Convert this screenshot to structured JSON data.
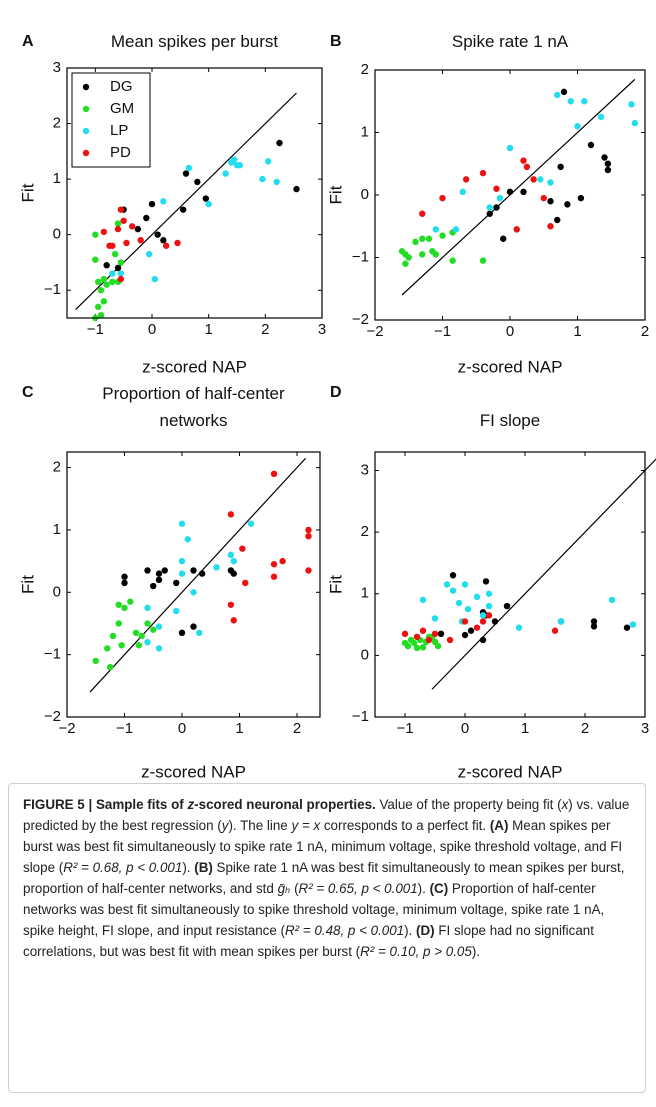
{
  "chart_data": [
    {
      "type": "scatter",
      "label": "A",
      "title": "Mean  spikes per burst",
      "xlabel": "z-scored NAP",
      "ylabel": "Fit",
      "legend": "upper left",
      "xlim": [
        -1.5,
        3
      ],
      "ylim": [
        -1.5,
        3
      ],
      "xticks": [
        {
          "value": -1,
          "label": "−1"
        },
        0,
        1,
        2,
        3
      ],
      "yticks": [
        {
          "value": -1,
          "label": "−1"
        },
        0,
        1,
        2,
        3
      ],
      "reference_line": [
        -1.35,
        2.55
      ],
      "series": [
        {
          "name": "DG",
          "color": "#000000",
          "x": [
            -0.8,
            -0.6,
            -0.5,
            -0.1,
            0,
            0.1,
            0.2,
            0.55,
            0.6,
            0.8,
            0.95,
            2.25,
            2.55,
            -0.25
          ],
          "values": [
            -0.55,
            -0.6,
            0.45,
            0.3,
            0.55,
            0,
            -0.1,
            0.45,
            1.1,
            0.95,
            0.65,
            1.65,
            0.82,
            0.1
          ]
        },
        {
          "name": "GM",
          "color": "#22dd22",
          "x": [
            -1,
            -0.95,
            -0.9,
            -0.85,
            -0.9,
            -0.85,
            -0.7,
            -0.65,
            -1,
            -1,
            -0.55,
            -0.6,
            -0.8,
            -0.95,
            -0.6
          ],
          "values": [
            -1.5,
            -1.3,
            -1.45,
            -1.2,
            -1,
            -0.8,
            -0.85,
            -0.35,
            -0.45,
            0,
            -0.5,
            0.2,
            -0.9,
            -0.85,
            -0.85
          ]
        },
        {
          "name": "LP",
          "color": "#22ddee",
          "x": [
            -0.7,
            -0.55,
            0.05,
            -0.05,
            0.2,
            0.65,
            1,
            1.3,
            1.45,
            1.5,
            1.55,
            1.95,
            2.05,
            2.2,
            1.4
          ],
          "values": [
            -0.7,
            -0.7,
            -0.8,
            -0.35,
            0.6,
            1.2,
            0.55,
            1.1,
            1.35,
            1.25,
            1.25,
            1,
            1.32,
            0.95,
            1.3
          ]
        },
        {
          "name": "PD",
          "color": "#ee1111",
          "x": [
            -0.85,
            -0.75,
            -0.6,
            -0.55,
            -0.5,
            -0.45,
            -0.35,
            -0.2,
            0.25,
            0.45,
            -0.55,
            -0.7
          ],
          "values": [
            0.05,
            -0.2,
            0.1,
            0.45,
            0.25,
            -0.15,
            0.15,
            -0.1,
            -0.2,
            -0.15,
            -0.8,
            -0.2
          ]
        }
      ]
    },
    {
      "type": "scatter",
      "label": "B",
      "title": "Spike rate 1 nA",
      "xlabel": "z-scored NAP",
      "ylabel": "Fit",
      "xlim": [
        -2,
        2
      ],
      "ylim": [
        -2,
        2
      ],
      "xticks": [
        {
          "value": -2,
          "label": "−2"
        },
        {
          "value": -1,
          "label": "−1"
        },
        0,
        1,
        2
      ],
      "yticks": [
        {
          "value": -2,
          "label": "−2"
        },
        {
          "value": -1,
          "label": "−1"
        },
        0,
        1,
        2
      ],
      "reference_line": [
        -1.6,
        1.85
      ],
      "series": [
        {
          "color": "#000000",
          "x": [
            -0.1,
            -0.3,
            -0.2,
            0,
            0.2,
            0.6,
            0.7,
            0.75,
            0.85,
            1.05,
            1.2,
            1.4,
            1.45,
            1.45,
            0.8
          ],
          "values": [
            -0.7,
            -0.3,
            -0.2,
            0.05,
            0.05,
            -0.1,
            -0.4,
            0.45,
            -0.15,
            -0.05,
            0.8,
            0.6,
            0.5,
            0.4,
            1.65
          ]
        },
        {
          "color": "#22dd22",
          "x": [
            -1.6,
            -1.55,
            -1.5,
            -1.4,
            -1.3,
            -1.3,
            -1.2,
            -1.15,
            -1.1,
            -1,
            -0.85,
            -0.85,
            -0.4,
            -1.55
          ],
          "values": [
            -0.9,
            -0.95,
            -1,
            -0.75,
            -0.7,
            -0.95,
            -0.7,
            -0.9,
            -0.95,
            -0.65,
            -1.05,
            -0.6,
            -1.05,
            -1.1
          ]
        },
        {
          "color": "#22ddee",
          "x": [
            -1.1,
            -0.8,
            -0.7,
            -0.3,
            -0.15,
            0,
            0.1,
            0.45,
            0.7,
            0.9,
            1,
            1.1,
            1.35,
            1.8,
            1.85,
            0.6
          ],
          "values": [
            -0.55,
            -0.55,
            0.05,
            -0.2,
            -0.05,
            0.75,
            -0.55,
            0.25,
            1.6,
            1.5,
            1.1,
            1.5,
            1.25,
            1.45,
            1.15,
            0.2
          ]
        },
        {
          "color": "#ee1111",
          "x": [
            -1.3,
            -1,
            -0.65,
            -0.4,
            -0.2,
            0.2,
            0.25,
            0.35,
            0.1,
            0.5,
            0.6
          ],
          "values": [
            -0.3,
            -0.05,
            0.25,
            0.35,
            0.1,
            0.55,
            0.45,
            0.25,
            -0.55,
            -0.05,
            -0.5
          ]
        }
      ]
    },
    {
      "type": "scatter",
      "label": "C",
      "title": "Proportion of half-center networks",
      "xlabel": "z-scored NAP",
      "ylabel": "Fit",
      "xlim": [
        -2,
        2.4
      ],
      "ylim": [
        -2,
        2.25
      ],
      "xticks": [
        {
          "value": -2,
          "label": "−2"
        },
        {
          "value": -1,
          "label": "−1"
        },
        0,
        1,
        2
      ],
      "yticks": [
        {
          "value": -2,
          "label": "−2"
        },
        {
          "value": -1,
          "label": "−1"
        },
        0,
        1,
        2
      ],
      "reference_line": [
        -1.6,
        2.15
      ],
      "series": [
        {
          "color": "#000000",
          "x": [
            -1,
            -1,
            -0.6,
            -0.5,
            -0.4,
            -0.4,
            -0.3,
            -0.1,
            0.2,
            0.35,
            0.85,
            0.9,
            0,
            0.2
          ],
          "values": [
            0.25,
            0.15,
            0.35,
            0.1,
            0.3,
            0.2,
            0.35,
            0.15,
            0.35,
            0.3,
            0.35,
            0.3,
            -0.65,
            -0.55
          ]
        },
        {
          "color": "#22dd22",
          "x": [
            -1.5,
            -1.3,
            -1.25,
            -1.2,
            -1.1,
            -1.05,
            -1,
            -0.9,
            -0.8,
            -0.75,
            -0.7,
            -0.6,
            -0.5,
            -1.1
          ],
          "values": [
            -1.1,
            -0.9,
            -1.2,
            -0.7,
            -0.5,
            -0.85,
            -0.25,
            -0.15,
            -0.65,
            -0.85,
            -0.7,
            -0.5,
            -0.6,
            -0.2
          ]
        },
        {
          "color": "#22ddee",
          "x": [
            -0.6,
            -0.4,
            -0.4,
            -0.6,
            0,
            0,
            0,
            0.1,
            0.3,
            0.6,
            0.85,
            0.9,
            1.2,
            0.2,
            -0.1
          ],
          "values": [
            -0.25,
            -0.55,
            -0.9,
            -0.8,
            1.1,
            0.5,
            0.3,
            0.85,
            -0.65,
            0.4,
            0.6,
            0.5,
            1.1,
            0,
            -0.3
          ]
        },
        {
          "color": "#ee1111",
          "x": [
            0.85,
            1.1,
            1.6,
            1.6,
            1.6,
            1.75,
            2.2,
            2.2,
            0.9,
            0.85,
            1.05,
            2.2
          ],
          "values": [
            1.25,
            0.15,
            1.9,
            0.45,
            0.25,
            0.5,
            1,
            0.35,
            -0.45,
            -0.2,
            0.7,
            0.9
          ]
        }
      ]
    },
    {
      "type": "scatter",
      "label": "D",
      "title": "FI slope",
      "xlabel": "z-scored NAP",
      "ylabel": "Fit",
      "xlim": [
        -1.5,
        3
      ],
      "ylim": [
        -1,
        3.3
      ],
      "xticks": [
        {
          "value": -1,
          "label": "−1"
        },
        0,
        1,
        2,
        3
      ],
      "yticks": [
        {
          "value": -1,
          "label": "−1"
        },
        0,
        1,
        2,
        3
      ],
      "reference_line": [
        -0.55,
        3.25
      ],
      "series": [
        {
          "color": "#000000",
          "x": [
            -0.2,
            0.35,
            0.3,
            0.35,
            0.7,
            0.5,
            0.1,
            0,
            -0.4,
            0.3,
            2.15,
            2.15,
            2.7,
            1.6
          ],
          "values": [
            1.3,
            1.2,
            0.7,
            0.65,
            0.8,
            0.55,
            0.4,
            0.33,
            0.35,
            0.25,
            0.55,
            0.47,
            0.45,
            0.55
          ]
        },
        {
          "color": "#22dd22",
          "x": [
            -1,
            -0.95,
            -0.9,
            -0.85,
            -0.8,
            -0.75,
            -0.65,
            -0.6,
            -0.5,
            -0.45,
            -0.7,
            -0.55
          ],
          "values": [
            0.2,
            0.15,
            0.25,
            0.2,
            0.12,
            0.25,
            0.22,
            0.3,
            0.22,
            0.15,
            0.13,
            0.3
          ]
        },
        {
          "color": "#22ddee",
          "x": [
            -0.7,
            -0.5,
            -0.3,
            -0.2,
            -0.1,
            0,
            0.05,
            0.2,
            0.4,
            0.3,
            -0.05,
            0.9,
            1.6,
            2.45,
            2.8,
            0.4
          ],
          "values": [
            0.9,
            0.6,
            1.15,
            1.05,
            0.85,
            1.15,
            0.75,
            0.95,
            1,
            0.65,
            0.55,
            0.45,
            0.55,
            0.9,
            0.5,
            0.8
          ]
        },
        {
          "color": "#ee1111",
          "x": [
            -1,
            -0.8,
            -0.7,
            -0.5,
            -0.6,
            -0.25,
            0,
            0.2,
            0.4,
            1.5,
            0.3
          ],
          "values": [
            0.35,
            0.3,
            0.4,
            0.35,
            0.25,
            0.25,
            0.55,
            0.45,
            0.65,
            0.4,
            0.55
          ]
        }
      ]
    }
  ],
  "caption": [
    {
      "text": "FIGURE 5 | Sample fits of ",
      "style": "bold"
    },
    {
      "text": "z",
      "style": "bold-italic"
    },
    {
      "text": "-scored neuronal properties.",
      "style": "bold"
    },
    {
      "text": " Value of the property being fit (",
      "style": "normal"
    },
    {
      "text": "x",
      "style": "italic"
    },
    {
      "text": ") vs. value predicted by the best regression (",
      "style": "normal"
    },
    {
      "text": "y",
      "style": "italic"
    },
    {
      "text": "). The line ",
      "style": "normal"
    },
    {
      "text": "y = x",
      "style": "italic"
    },
    {
      "text": " corresponds to a perfect fit. ",
      "style": "normal"
    },
    {
      "text": "(A)",
      "style": "bold"
    },
    {
      "text": " Mean spikes per burst was best fit simultaneously to spike rate 1 nA, minimum voltage, spike threshold voltage, and FI slope (",
      "style": "normal"
    },
    {
      "text": "R² = 0.68, p < 0.001",
      "style": "italic"
    },
    {
      "text": "). ",
      "style": "normal"
    },
    {
      "text": "(B)",
      "style": "bold"
    },
    {
      "text": " Spike rate 1 nA was best fit simultaneously to mean spikes per burst, proportion of half-center networks, and std ",
      "style": "normal"
    },
    {
      "text": "ḡₕ",
      "style": "italic"
    },
    {
      "text": " (",
      "style": "normal"
    },
    {
      "text": "R² = 0.65, p < 0.001",
      "style": "italic"
    },
    {
      "text": "). ",
      "style": "normal"
    },
    {
      "text": "(C)",
      "style": "bold"
    },
    {
      "text": " Proportion of half-center networks was best fit simultaneously to spike threshold voltage, minimum voltage, spike rate 1 nA, spike height, FI slope, and input resistance (",
      "style": "normal"
    },
    {
      "text": "R² = 0.48, p < 0.001",
      "style": "italic"
    },
    {
      "text": "). ",
      "style": "normal"
    },
    {
      "text": "(D)",
      "style": "bold"
    },
    {
      "text": " FI slope had no significant correlations, but was best fit with mean spikes per burst (",
      "style": "normal"
    },
    {
      "text": "R² = 0.10, p > 0.05",
      "style": "italic"
    },
    {
      "text": ").",
      "style": "normal"
    }
  ]
}
